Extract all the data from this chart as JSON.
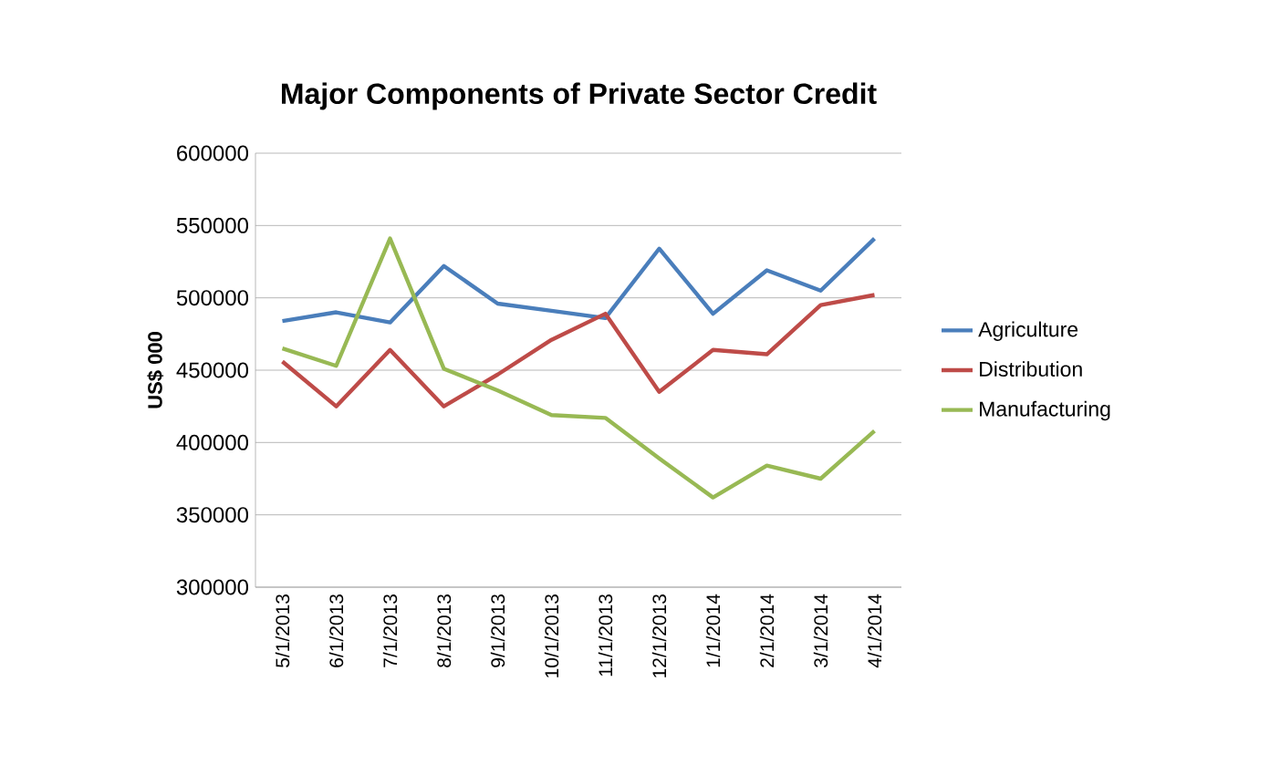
{
  "chart_data": {
    "type": "line",
    "title": "Major Components of Private Sector Credit",
    "ylabel": "US$ 000",
    "categories": [
      "5/1/2013",
      "6/1/2013",
      "7/1/2013",
      "8/1/2013",
      "9/1/2013",
      "10/1/2013",
      "11/1/2013",
      "12/1/2013",
      "1/1/2014",
      "2/1/2014",
      "3/1/2014",
      "4/1/2014"
    ],
    "series": [
      {
        "name": "Agriculture",
        "color": "#4a7ebb",
        "values": [
          484000,
          490000,
          483000,
          522000,
          496000,
          491000,
          486000,
          534000,
          489000,
          519000,
          505000,
          541000
        ]
      },
      {
        "name": "Distribution",
        "color": "#be4b48",
        "values": [
          456000,
          425000,
          464000,
          425000,
          447000,
          471000,
          489000,
          435000,
          464000,
          461000,
          495000,
          502000
        ]
      },
      {
        "name": "Manufacturing",
        "color": "#98b954",
        "values": [
          465000,
          453000,
          541000,
          451000,
          436000,
          419000,
          417000,
          389000,
          362000,
          384000,
          375000,
          408000
        ]
      }
    ],
    "ylim": [
      300000,
      600000
    ],
    "yticks": [
      300000,
      350000,
      400000,
      450000,
      500000,
      550000,
      600000
    ],
    "grid": "y",
    "legend": "right",
    "marker": "none",
    "line_style": "solid"
  }
}
